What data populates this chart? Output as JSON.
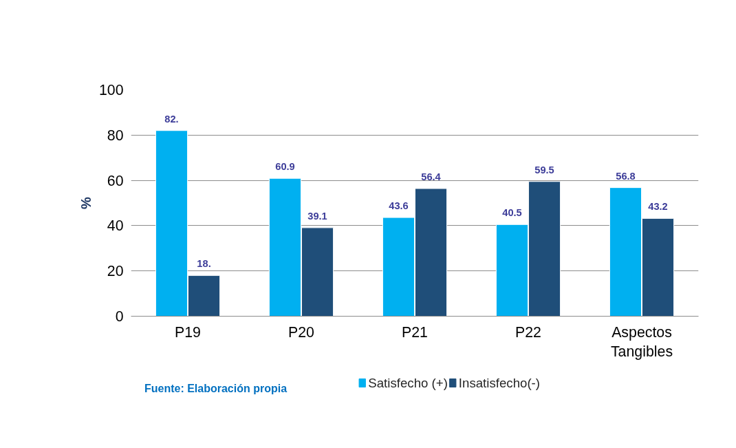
{
  "chart_data": {
    "type": "bar",
    "categories": [
      "P19",
      "P20",
      "P21",
      "P22",
      "Aspectos Tangibles"
    ],
    "series": [
      {
        "name": "Satisfecho (+)",
        "color": "#00b0f0",
        "values": [
          82,
          60.9,
          43.6,
          40.5,
          56.8
        ],
        "value_labels": [
          "82.",
          "60.9",
          "43.6",
          "40.5",
          "56.8"
        ]
      },
      {
        "name": "Insatisfecho(-)",
        "color": "#1f4e79",
        "values": [
          18,
          39.1,
          56.4,
          59.5,
          43.2
        ],
        "value_labels": [
          "18.",
          "39.1",
          "56.4",
          "59.5",
          "43.2"
        ]
      }
    ],
    "ylabel": "%",
    "ylim": [
      0,
      100
    ],
    "yticks": [
      0,
      20,
      40,
      60,
      80,
      100
    ],
    "grid": "y",
    "legend": "bottom",
    "annotations": [
      "Fuente: Elaboración propia"
    ]
  }
}
